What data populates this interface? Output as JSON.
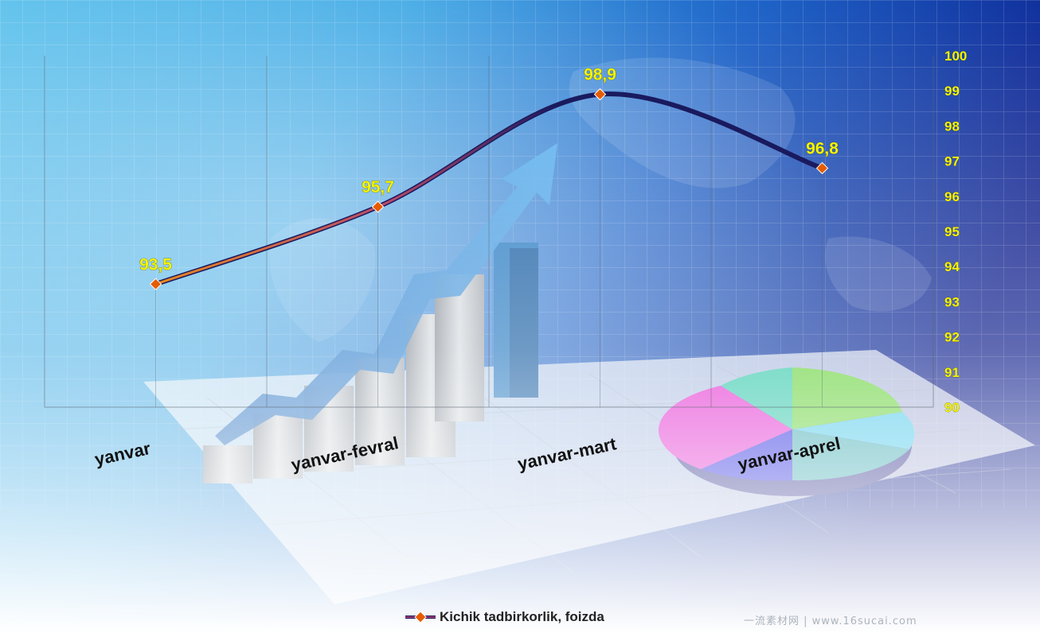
{
  "chart_data": {
    "type": "line",
    "categories": [
      "yanvar",
      "yanvar-fevral",
      "yanvar-mart",
      "yanvar-aprel"
    ],
    "series": [
      {
        "name": "Kichik tadbirkorlik, foizda",
        "values": [
          93.5,
          95.7,
          98.9,
          96.8
        ]
      }
    ],
    "data_labels": [
      "93,5",
      "95,7",
      "98,9",
      "96,8"
    ],
    "y_ticks": [
      "90",
      "91",
      "92",
      "93",
      "94",
      "95",
      "96",
      "97",
      "98",
      "99",
      "100"
    ],
    "ylim": [
      90,
      100
    ],
    "y_axis_side": "right",
    "grid": "vertical",
    "smooth": true,
    "legend_position": "bottom",
    "colors": {
      "label": "#f4f400",
      "marker": "#e65c00",
      "line_dark": "#1a1a5e",
      "line_warm": "#e07a1a",
      "category_text": "#111111"
    }
  },
  "watermark": "一流素材网 | www.16sucai.com"
}
